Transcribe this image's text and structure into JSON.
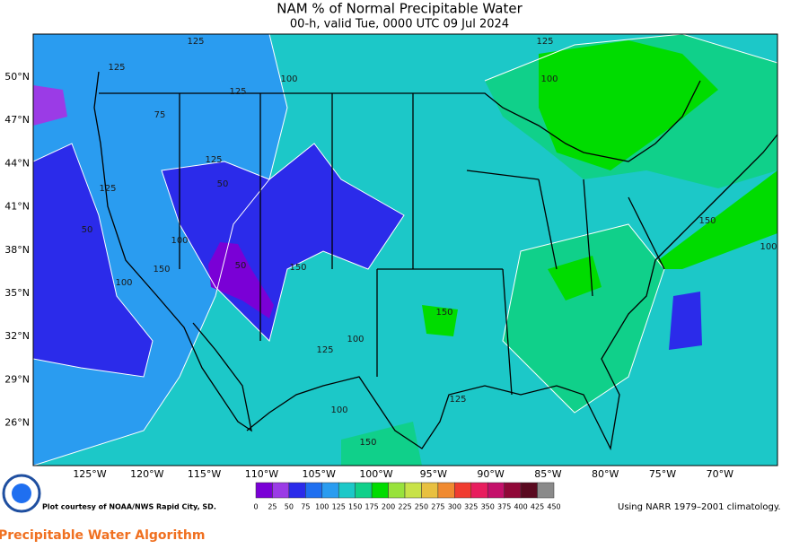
{
  "header": {
    "title": "NAM % of Normal Precipitable Water",
    "subtitle": "00-h, valid Tue, 0000 UTC 09 Jul 2024"
  },
  "map": {
    "lat_labels": [
      "50°N",
      "47°N",
      "44°N",
      "41°N",
      "38°N",
      "35°N",
      "32°N",
      "29°N",
      "26°N"
    ],
    "lon_labels": [
      "125°W",
      "120°W",
      "115°W",
      "110°W",
      "105°W",
      "100°W",
      "95°W",
      "90°W",
      "85°W",
      "80°W",
      "75°W",
      "70°W"
    ],
    "contour_labels": [
      "125",
      "125",
      "100",
      "125",
      "75",
      "50",
      "50",
      "100",
      "125",
      "150",
      "100",
      "125",
      "125",
      "100",
      "150",
      "150",
      "100",
      "125",
      "100",
      "125",
      "150",
      "150",
      "100",
      "50"
    ]
  },
  "colorbar": {
    "ticks": [
      0,
      25,
      50,
      75,
      100,
      125,
      150,
      175,
      200,
      225,
      250,
      275,
      300,
      325,
      350,
      375,
      400,
      425,
      450
    ],
    "colors": [
      "#7a00d6",
      "#9b3be6",
      "#2b2bea",
      "#1f6ff0",
      "#2a9cf0",
      "#1cc8c8",
      "#10d08a",
      "#00dc00",
      "#98e23c",
      "#c8e248",
      "#e8c040",
      "#f08a30",
      "#f03c30",
      "#e81e5e",
      "#c4106a",
      "#900838",
      "#5a0a20",
      "#8a8a8a"
    ]
  },
  "footer": {
    "credit": "Plot courtesy of NOAA/NWS Rapid City, SD.",
    "climatology": "Using NARR 1979–2001 climatology.",
    "algorithm": "Precipitable Water Algorithm"
  }
}
